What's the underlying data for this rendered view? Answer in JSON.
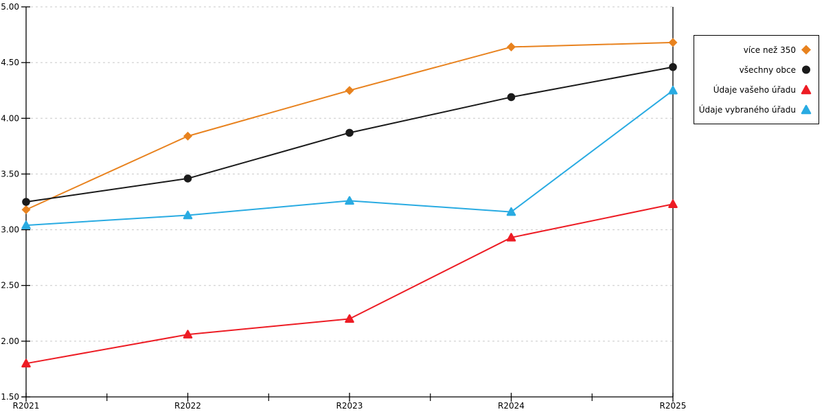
{
  "chart_data": {
    "type": "line",
    "title": "",
    "categories": [
      "R2021",
      "R2022",
      "R2023",
      "R2024",
      "R2025"
    ],
    "series": [
      {
        "name": "více než 350",
        "marker": "diamond",
        "color": "#E8821E",
        "values": [
          3.18,
          3.84,
          4.25,
          4.64,
          4.68
        ]
      },
      {
        "name": "všechny obce",
        "marker": "circle",
        "color": "#1A1A1A",
        "values": [
          3.25,
          3.46,
          3.87,
          4.19,
          4.46
        ]
      },
      {
        "name": "Údaje vašeho úřadu",
        "marker": "triangle",
        "color": "#ED1C24",
        "values": [
          1.8,
          2.06,
          2.2,
          2.93,
          3.23
        ]
      },
      {
        "name": "Údaje vybraného úřadu",
        "marker": "triangle",
        "color": "#29ABE2",
        "values": [
          3.04,
          3.13,
          3.26,
          3.16,
          4.25
        ]
      }
    ],
    "xlabel": "",
    "ylabel": "",
    "ylim": [
      1.5,
      5.0
    ],
    "ytick_step": 0.5,
    "ytick_labels": [
      "5.00",
      "4.50",
      "4.00",
      "3.50",
      "3.00",
      "2.50",
      "2.00",
      "1.50"
    ],
    "xtick_labels": [
      "R2021",
      "R2022",
      "R2023",
      "R2024",
      "R2025"
    ],
    "grid": "horizontal-dashed",
    "gridline_color": "#C8C8C8",
    "axis_color": "#000000",
    "text_color": "#000000",
    "legend_position": "right"
  }
}
